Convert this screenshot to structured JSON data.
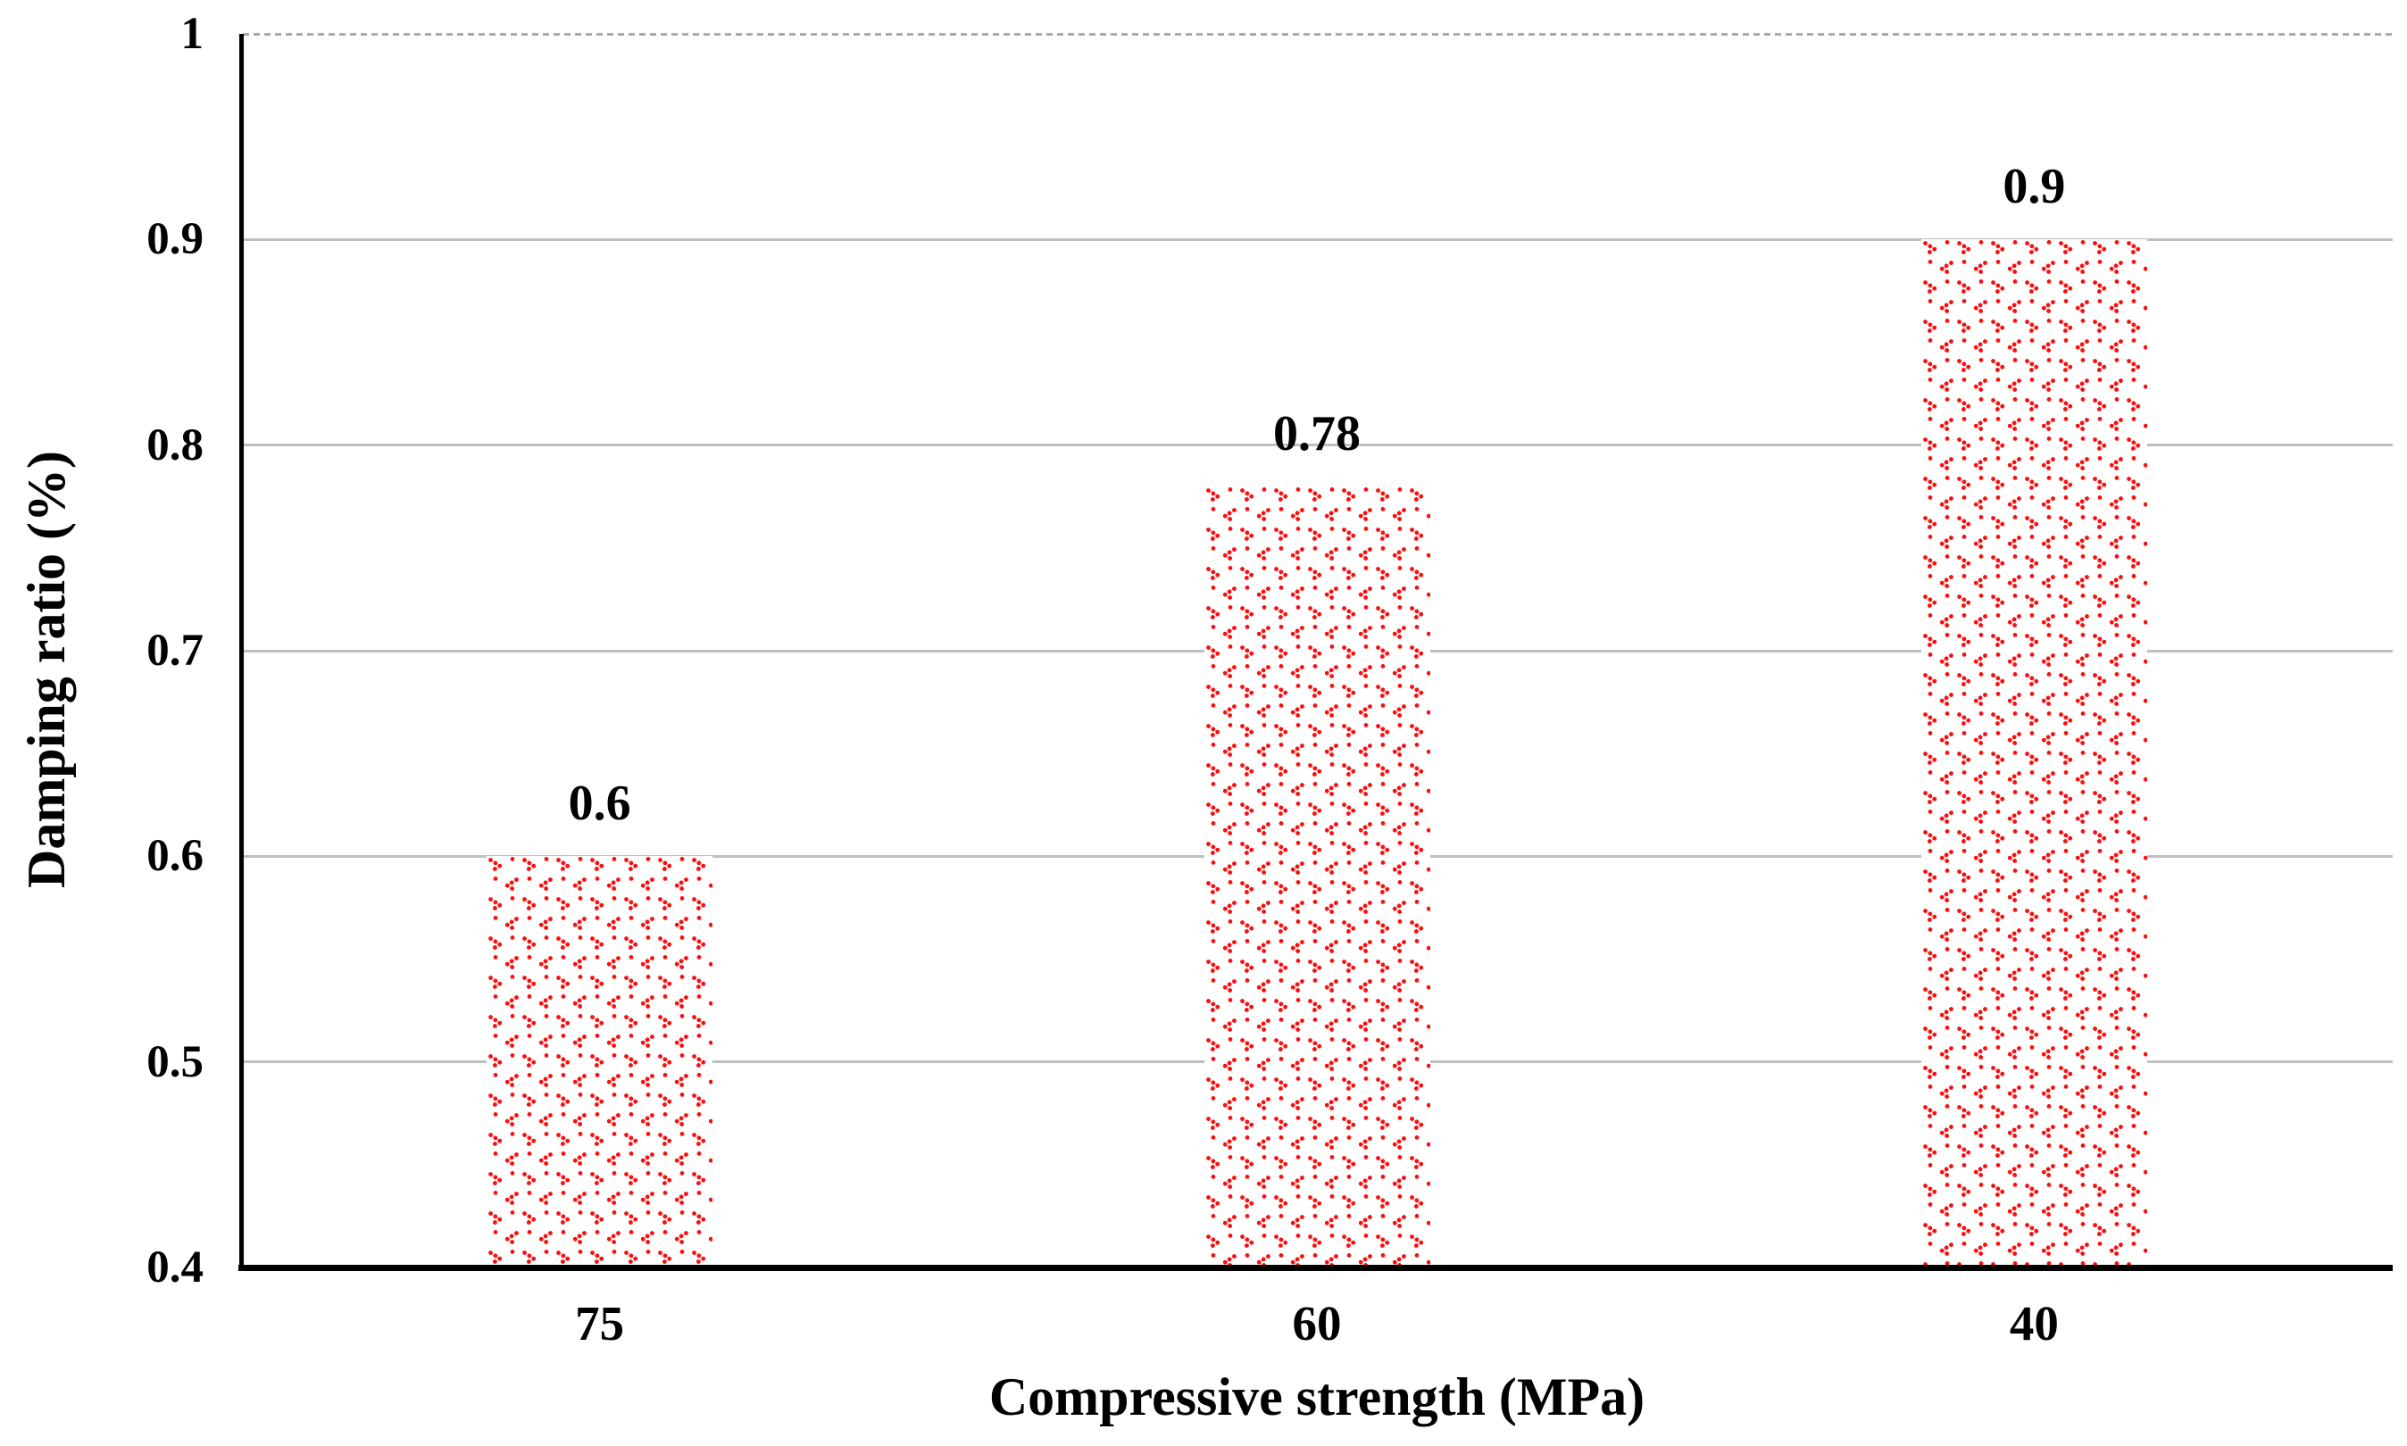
{
  "chart_data": {
    "type": "bar",
    "categories": [
      "75",
      "60",
      "40"
    ],
    "values": [
      0.6,
      0.78,
      0.9
    ],
    "data_labels": [
      "0.6",
      "0.78",
      "0.9"
    ],
    "xlabel": "Compressive strength (MPa)",
    "ylabel": "Damping ratio (%)",
    "ylim": [
      0.4,
      1.0
    ],
    "yticks": [
      1,
      0.9,
      0.8,
      0.7,
      0.6,
      0.5,
      0.4
    ],
    "ytick_labels": [
      "1",
      "0.9",
      "0.8",
      "0.7",
      "0.6",
      "0.5",
      "0.4"
    ],
    "grid": "horizontal",
    "legend_position": "none",
    "colors": {
      "bar_pattern_red": "#fa0f0f",
      "gridline": "#bfbfbf",
      "top_gridline_dashed": "#ababab",
      "axis": "#000000",
      "background": "#ffffff",
      "text": "#000000"
    },
    "bar_fill_style": "red dotted chevron pattern on white"
  }
}
